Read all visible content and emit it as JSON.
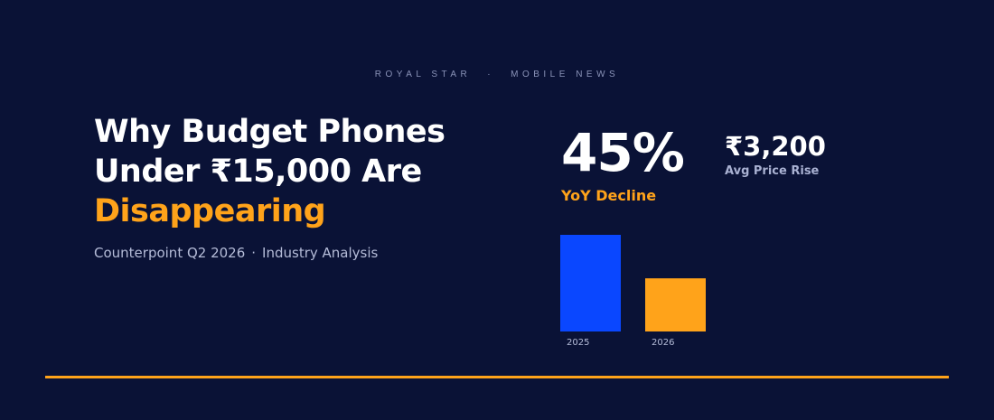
{
  "brand": {
    "left": "ROYAL STAR",
    "separator": "·",
    "right": "MOBILE NEWS"
  },
  "headline": {
    "line1": "Why Budget Phones",
    "line2": "Under ₹15,000 Are",
    "line3": "Disappearing"
  },
  "subline": {
    "source": "Counterpoint Q2 2026",
    "separator": "·",
    "type": "Industry Analysis"
  },
  "stats": {
    "primary_value": "45%",
    "primary_label": "YoY Decline",
    "secondary_value": "₹3,200",
    "secondary_label": "Avg Price Rise"
  },
  "colors": {
    "background": "#0a1236",
    "accent": "#ffa31a",
    "blue_bar": "#0a47ff",
    "text": "#ffffff"
  },
  "chart_data": {
    "type": "bar",
    "categories": [
      "2025",
      "2026"
    ],
    "values": [
      100,
      55
    ],
    "ylim": [
      0,
      100
    ],
    "colors": [
      "#0a47ff",
      "#ffa31a"
    ]
  }
}
